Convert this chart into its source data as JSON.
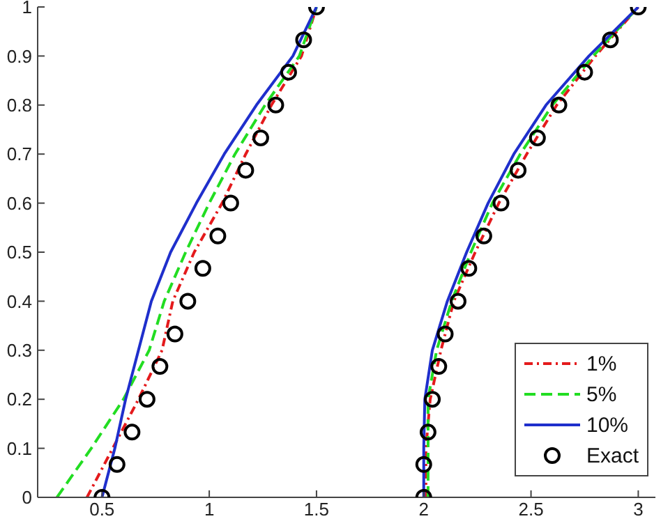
{
  "chart_data": {
    "type": "line",
    "xlim": [
      0.2,
      3.08
    ],
    "ylim": [
      0,
      1
    ],
    "xticks": [
      0.5,
      1,
      1.5,
      2,
      2.5,
      3
    ],
    "yticks": [
      0,
      0.1,
      0.2,
      0.3,
      0.4,
      0.5,
      0.6,
      0.7,
      0.8,
      0.9,
      1
    ],
    "grid": false,
    "legend": "bottom right",
    "marker": "none",
    "series": [
      {
        "name": "1%",
        "color": "#e41a1c",
        "line_style": "dashdot",
        "x": [
          0.43,
          0.55,
          0.67,
          0.78,
          0.83,
          0.93,
          1.06,
          1.17,
          1.29,
          1.43,
          1.5
        ],
        "values": [
          0,
          0.1,
          0.2,
          0.3,
          0.4,
          0.5,
          0.6,
          0.7,
          0.8,
          0.9,
          1
        ]
      },
      {
        "name": "5%",
        "color": "#22dd22",
        "line_style": "dashed",
        "x": [
          0.29,
          0.45,
          0.6,
          0.72,
          0.79,
          0.89,
          1.0,
          1.12,
          1.26,
          1.42,
          1.5
        ],
        "values": [
          0,
          0.1,
          0.2,
          0.3,
          0.4,
          0.5,
          0.6,
          0.7,
          0.8,
          0.9,
          1
        ]
      },
      {
        "name": "10%",
        "color": "#1f2fcc",
        "line_style": "solid",
        "x": [
          0.5,
          0.56,
          0.61,
          0.67,
          0.73,
          0.82,
          0.94,
          1.07,
          1.22,
          1.39,
          1.5
        ],
        "values": [
          0,
          0.1,
          0.2,
          0.3,
          0.4,
          0.5,
          0.6,
          0.7,
          0.8,
          0.9,
          1
        ]
      },
      {
        "color": "#e41a1c",
        "line_style": "dashdot",
        "x": [
          2.01,
          2.01,
          2.03,
          2.08,
          2.14,
          2.24,
          2.35,
          2.48,
          2.62,
          2.8,
          3.0
        ],
        "values": [
          0,
          0.1,
          0.2,
          0.3,
          0.4,
          0.5,
          0.6,
          0.7,
          0.8,
          0.9,
          1
        ]
      },
      {
        "color": "#22dd22",
        "line_style": "dashed",
        "x": [
          2.02,
          2.02,
          2.02,
          2.06,
          2.13,
          2.22,
          2.32,
          2.45,
          2.6,
          2.79,
          3.0
        ],
        "values": [
          0,
          0.1,
          0.2,
          0.3,
          0.4,
          0.5,
          0.6,
          0.7,
          0.8,
          0.9,
          1
        ]
      },
      {
        "color": "#1f2fcc",
        "line_style": "solid",
        "x": [
          2.0,
          2.0,
          2.005,
          2.04,
          2.11,
          2.2,
          2.3,
          2.42,
          2.57,
          2.77,
          3.0
        ],
        "values": [
          0,
          0.1,
          0.2,
          0.3,
          0.4,
          0.5,
          0.6,
          0.7,
          0.8,
          0.9,
          1
        ]
      },
      {
        "name": "Exact",
        "type": "scatter",
        "marker": "circle",
        "color": "#000000",
        "x": [
          0.5,
          0.57,
          0.64,
          0.71,
          0.77,
          0.84,
          0.9,
          0.97,
          1.04,
          1.1,
          1.17,
          1.24,
          1.31,
          1.37,
          1.44,
          1.5
        ],
        "values": [
          0,
          0.067,
          0.133,
          0.2,
          0.267,
          0.333,
          0.4,
          0.467,
          0.533,
          0.6,
          0.667,
          0.733,
          0.8,
          0.867,
          0.933,
          1
        ]
      },
      {
        "type": "scatter",
        "marker": "circle",
        "color": "#000000",
        "x": [
          2.0,
          2.0,
          2.02,
          2.04,
          2.07,
          2.1,
          2.16,
          2.21,
          2.28,
          2.36,
          2.44,
          2.53,
          2.63,
          2.75,
          2.87,
          3.0
        ],
        "values": [
          0,
          0.067,
          0.133,
          0.2,
          0.267,
          0.333,
          0.4,
          0.467,
          0.533,
          0.6,
          0.667,
          0.733,
          0.8,
          0.867,
          0.933,
          1
        ]
      }
    ]
  }
}
